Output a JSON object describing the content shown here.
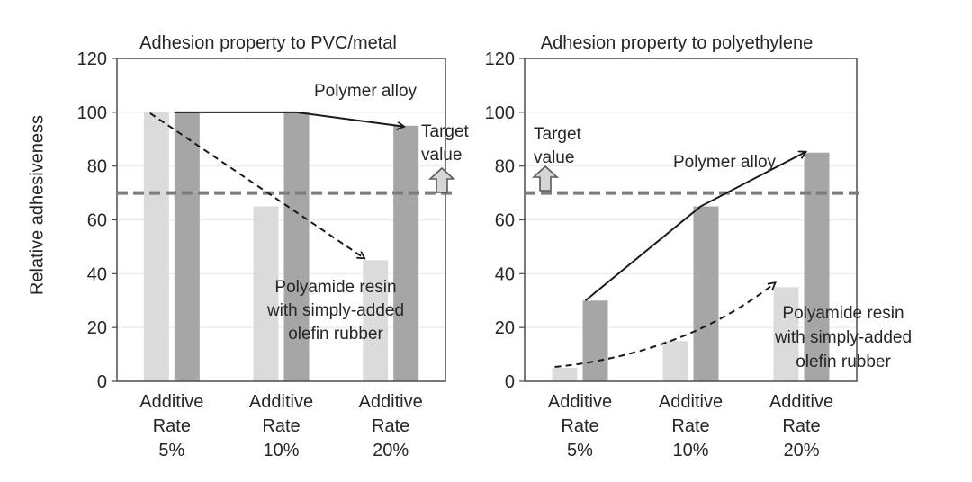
{
  "figure": {
    "ylabel": "Relative adhesiveness"
  },
  "colors": {
    "light_bar": "#dbdbdb",
    "dark_bar": "#a6a6a6",
    "target_line": "#7d7d7d",
    "trend_line": "#1a1a1a",
    "grid": "#e9e9e9",
    "frame": "#4d4d4d",
    "arrow_fill": "#d6d6d6",
    "arrow_stroke": "#5a5a5a",
    "text": "#262626"
  },
  "chart_data": [
    {
      "type": "bar",
      "title": "Adhesion property to PVC/metal",
      "categories": [
        "Additive Rate 5%",
        "Additive Rate 10%",
        "Additive Rate 20%"
      ],
      "category_lines": [
        [
          "Additive",
          "Rate",
          "5%"
        ],
        [
          "Additive",
          "Rate",
          "10%"
        ],
        [
          "Additive",
          "Rate",
          "20%"
        ]
      ],
      "series": [
        {
          "name": "Polyamide resin with simply-added olefin rubber",
          "values": [
            100,
            65,
            45
          ],
          "bar_color": "#dbdbdb",
          "trend": "dashed"
        },
        {
          "name": "Polymer alloy",
          "values": [
            100,
            100,
            95
          ],
          "bar_color": "#a6a6a6",
          "trend": "solid"
        }
      ],
      "ylim": [
        0,
        120
      ],
      "yticks": [
        0,
        20,
        40,
        60,
        80,
        100,
        120
      ],
      "grid": true,
      "legend": "in-plot annotations",
      "target_line": {
        "value": 70,
        "label_lines": [
          "Target",
          "value"
        ]
      },
      "annotations": {
        "alloy_label": "Polymer alloy",
        "polyamide_label_lines": [
          "Polyamide resin",
          "with simply-added",
          "olefin rubber"
        ]
      }
    },
    {
      "type": "bar",
      "title": "Adhesion property to polyethylene",
      "categories": [
        "Additive Rate 5%",
        "Additive Rate 10%",
        "Additive Rate 20%"
      ],
      "category_lines": [
        [
          "Additive",
          "Rate",
          "5%"
        ],
        [
          "Additive",
          "Rate",
          "10%"
        ],
        [
          "Additive",
          "Rate",
          "20%"
        ]
      ],
      "series": [
        {
          "name": "Polyamide resin with simply-added olefin rubber",
          "values": [
            5,
            15,
            35
          ],
          "bar_color": "#dbdbdb",
          "trend": "dashed"
        },
        {
          "name": "Polymer alloy",
          "values": [
            30,
            65,
            85
          ],
          "bar_color": "#a6a6a6",
          "trend": "solid"
        }
      ],
      "ylim": [
        0,
        120
      ],
      "yticks": [
        0,
        20,
        40,
        60,
        80,
        100,
        120
      ],
      "grid": true,
      "legend": "in-plot annotations",
      "target_line": {
        "value": 70,
        "label_lines": [
          "Target",
          "value"
        ]
      },
      "annotations": {
        "alloy_label": "Polymer alloy",
        "polyamide_label_lines": [
          "Polyamide resin",
          "with simply-added",
          "olefin rubber"
        ]
      }
    }
  ]
}
